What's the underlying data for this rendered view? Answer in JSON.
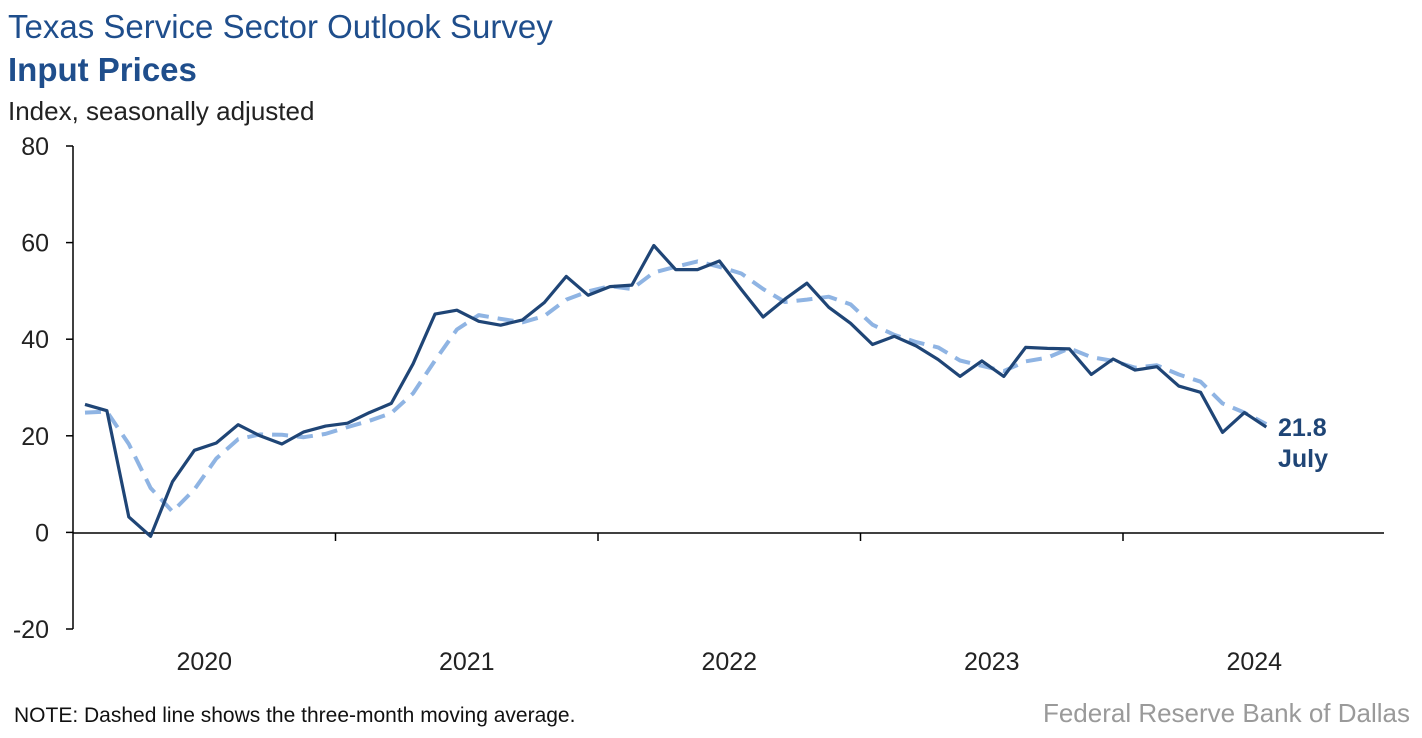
{
  "header": {
    "title": "Texas Service Sector Outlook Survey",
    "subtitle": "Input Prices",
    "units": "Index, seasonally adjusted"
  },
  "footer": {
    "note": "NOTE: Dashed line shows the three-month moving average.",
    "source": "Federal Reserve Bank of Dallas"
  },
  "colors": {
    "series_main": "#1f4576",
    "series_avg": "#8fb4e3",
    "axis": "#000000",
    "title": "#1f4e8c",
    "source": "#9a9a9a"
  },
  "chart_data": {
    "type": "line",
    "title": "Input Prices",
    "ylabel": "Index, seasonally adjusted",
    "ylim": [
      -20,
      80
    ],
    "yticks": [
      -20,
      0,
      20,
      40,
      60,
      80
    ],
    "xticks": [
      "2020",
      "2021",
      "2022",
      "2023",
      "2024"
    ],
    "start": "2020-01",
    "grid": false,
    "x": [
      "2020-01",
      "2020-02",
      "2020-03",
      "2020-04",
      "2020-05",
      "2020-06",
      "2020-07",
      "2020-08",
      "2020-09",
      "2020-10",
      "2020-11",
      "2020-12",
      "2021-01",
      "2021-02",
      "2021-03",
      "2021-04",
      "2021-05",
      "2021-06",
      "2021-07",
      "2021-08",
      "2021-09",
      "2021-10",
      "2021-11",
      "2021-12",
      "2022-01",
      "2022-02",
      "2022-03",
      "2022-04",
      "2022-05",
      "2022-06",
      "2022-07",
      "2022-08",
      "2022-09",
      "2022-10",
      "2022-11",
      "2022-12",
      "2023-01",
      "2023-02",
      "2023-03",
      "2023-04",
      "2023-05",
      "2023-06",
      "2023-07",
      "2023-08",
      "2023-09",
      "2023-10",
      "2023-11",
      "2023-12",
      "2024-01",
      "2024-02",
      "2024-03",
      "2024-04",
      "2024-05",
      "2024-06",
      "2024-07"
    ],
    "series": [
      {
        "name": "",
        "style": "solid",
        "values": [
          26.5,
          25.2,
          3.2,
          -0.8,
          10.5,
          17.0,
          18.5,
          22.3,
          20.0,
          18.3,
          20.8,
          22.0,
          22.6,
          24.8,
          26.7,
          34.9,
          45.2,
          46.0,
          43.7,
          42.9,
          44.0,
          47.6,
          53.0,
          49.1,
          50.9,
          51.2,
          59.4,
          54.4,
          54.4,
          56.2,
          50.3,
          44.6,
          48.3,
          51.6,
          46.6,
          43.3,
          38.9,
          40.6,
          38.6,
          35.8,
          32.3,
          35.5,
          32.3,
          38.3,
          38.1,
          38.0,
          32.7,
          35.9,
          33.6,
          34.3,
          30.3,
          29.0,
          20.7,
          24.8,
          21.8
        ]
      },
      {
        "name": "",
        "style": "dashed",
        "values": [
          24.8,
          25.0,
          18.3,
          9.2,
          4.3,
          8.9,
          15.3,
          19.3,
          20.3,
          20.2,
          19.7,
          20.4,
          21.8,
          23.1,
          24.7,
          28.8,
          35.6,
          42.0,
          45.0,
          44.2,
          43.5,
          44.8,
          48.2,
          49.9,
          51.0,
          50.4,
          53.8,
          55.0,
          56.1,
          55.0,
          53.6,
          50.4,
          47.7,
          48.2,
          48.8,
          47.2,
          43.0,
          40.9,
          39.4,
          38.3,
          35.6,
          34.5,
          33.4,
          35.4,
          36.2,
          38.1,
          36.3,
          35.5,
          34.1,
          34.6,
          32.7,
          31.2,
          26.7,
          24.8,
          22.4
        ]
      }
    ],
    "annotation": {
      "value": "21.8",
      "month": "July"
    }
  }
}
